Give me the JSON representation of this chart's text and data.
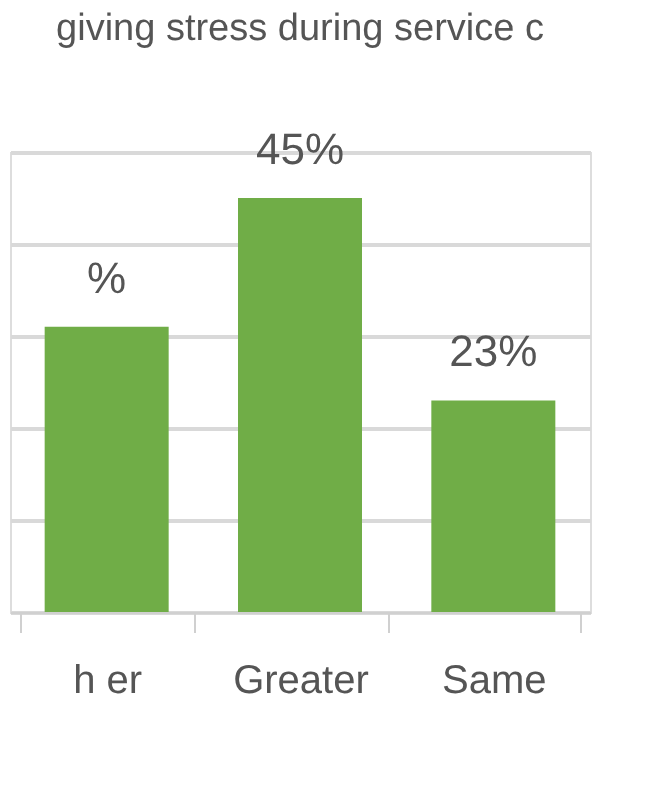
{
  "chart_data": {
    "type": "bar",
    "title": "giving stress during service c",
    "categories": [
      "h er",
      "Greater",
      "Same"
    ],
    "values": [
      31,
      45,
      23
    ],
    "value_labels": [
      "%",
      "45%",
      "23%"
    ],
    "color": "#70ad47",
    "ylim": [
      0,
      50
    ],
    "yticks": [
      {
        "value": 0,
        "label": null
      },
      {
        "value": 10,
        "label": null
      },
      {
        "value": 20,
        "label": null
      },
      {
        "value": 30,
        "label": null
      },
      {
        "value": 40,
        "label": null
      },
      {
        "value": 50,
        "label": null
      }
    ],
    "grid": "y",
    "tick_labels": "x"
  }
}
